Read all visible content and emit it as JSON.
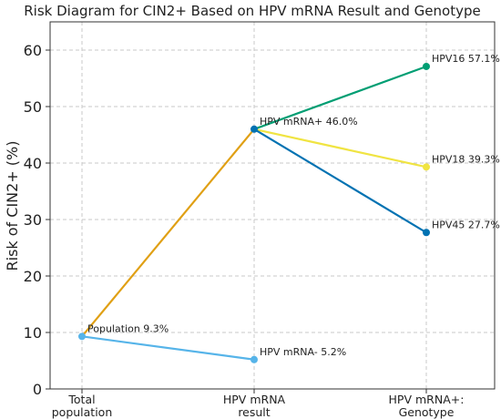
{
  "chart_data": {
    "type": "line",
    "title": "Risk Diagram for CIN2+ Based on HPV mRNA Result and Genotype",
    "xlabel": "",
    "ylabel": "Risk of CIN2+ (%)",
    "ylim": [
      0,
      65
    ],
    "yticks": [
      0,
      10,
      20,
      30,
      40,
      50,
      60
    ],
    "categories": [
      [
        "Total",
        "population"
      ],
      [
        "HPV mRNA",
        "result"
      ],
      [
        "HPV mRNA+:",
        "Genotype"
      ]
    ],
    "grid": true,
    "segments": [
      {
        "from": [
          0,
          9.3
        ],
        "to": [
          1,
          46.0
        ],
        "color": "#E0A015"
      },
      {
        "from": [
          0,
          9.3
        ],
        "to": [
          1,
          5.2
        ],
        "color": "#56B4E9"
      },
      {
        "from": [
          1,
          46.0
        ],
        "to": [
          2,
          57.1
        ],
        "color": "#009E73"
      },
      {
        "from": [
          1,
          46.0
        ],
        "to": [
          2,
          39.3
        ],
        "color": "#F0E442"
      },
      {
        "from": [
          1,
          46.0
        ],
        "to": [
          2,
          27.7
        ],
        "color": "#0072B2"
      }
    ],
    "points": [
      {
        "x": 0,
        "y": 9.3,
        "label": "Population 9.3%",
        "color": "#56B4E9"
      },
      {
        "x": 1,
        "y": 46.0,
        "label": "HPV mRNA+ 46.0%",
        "color": "#0072B2"
      },
      {
        "x": 1,
        "y": 5.2,
        "label": "HPV mRNA- 5.2%",
        "color": "#56B4E9"
      },
      {
        "x": 2,
        "y": 57.1,
        "label": "HPV16 57.1%",
        "color": "#009E73"
      },
      {
        "x": 2,
        "y": 39.3,
        "label": "HPV18 39.3%",
        "color": "#F0E442"
      },
      {
        "x": 2,
        "y": 27.7,
        "label": "HPV45 27.7%",
        "color": "#0072B2"
      }
    ]
  }
}
